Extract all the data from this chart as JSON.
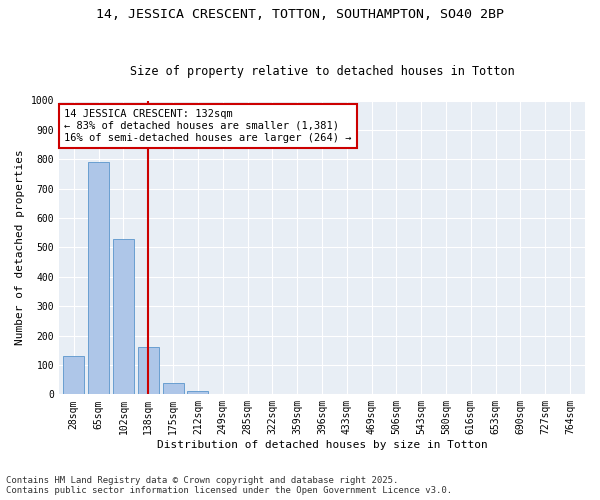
{
  "title_line1": "14, JESSICA CRESCENT, TOTTON, SOUTHAMPTON, SO40 2BP",
  "title_line2": "Size of property relative to detached houses in Totton",
  "xlabel": "Distribution of detached houses by size in Totton",
  "ylabel": "Number of detached properties",
  "categories": [
    "28sqm",
    "65sqm",
    "102sqm",
    "138sqm",
    "175sqm",
    "212sqm",
    "249sqm",
    "285sqm",
    "322sqm",
    "359sqm",
    "396sqm",
    "433sqm",
    "469sqm",
    "506sqm",
    "543sqm",
    "580sqm",
    "616sqm",
    "653sqm",
    "690sqm",
    "727sqm",
    "764sqm"
  ],
  "bar_values": [
    130,
    790,
    530,
    160,
    40,
    10,
    0,
    0,
    0,
    0,
    0,
    0,
    0,
    0,
    0,
    0,
    0,
    0,
    0,
    0,
    0
  ],
  "bar_color": "#aec6e8",
  "bar_edge_color": "#5a96cc",
  "vline_x_index": 3,
  "vline_color": "#cc0000",
  "annotation_text": "14 JESSICA CRESCENT: 132sqm\n← 83% of detached houses are smaller (1,381)\n16% of semi-detached houses are larger (264) →",
  "annotation_box_color": "#cc0000",
  "ylim": [
    0,
    1000
  ],
  "yticks": [
    0,
    100,
    200,
    300,
    400,
    500,
    600,
    700,
    800,
    900,
    1000
  ],
  "background_color": "#e8eef5",
  "footer_line1": "Contains HM Land Registry data © Crown copyright and database right 2025.",
  "footer_line2": "Contains public sector information licensed under the Open Government Licence v3.0.",
  "title_fontsize": 9.5,
  "subtitle_fontsize": 8.5,
  "axis_label_fontsize": 8,
  "tick_fontsize": 7,
  "annotation_fontsize": 7.5,
  "footer_fontsize": 6.5
}
